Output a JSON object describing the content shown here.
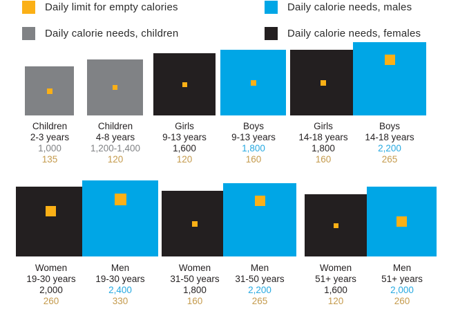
{
  "colors": {
    "empty": "#fbb016",
    "children": "#808285",
    "males": "#00a6e6",
    "females": "#231f20",
    "text_male": "#27a9e1",
    "text_child": "#808285",
    "text_empty": "#c49a4c"
  },
  "legend": [
    {
      "key": "empty",
      "label": "Daily limit for empty calories"
    },
    {
      "key": "males",
      "label": "Daily calorie needs, males"
    },
    {
      "key": "children",
      "label": "Daily calorie needs, children"
    },
    {
      "key": "females",
      "label": "Daily calorie needs, females"
    }
  ],
  "chart_data": {
    "type": "proportional-area",
    "title": "",
    "note": "Each large square's area represents daily calorie needs; inner orange square represents daily limit for empty calories.",
    "rows": [
      [
        {
          "group": "Children",
          "age": "2-3 years",
          "category": "children",
          "calories_label": "1,000",
          "calories": 1000,
          "empty_calories": 135
        },
        {
          "group": "Children",
          "age": "4-8 years",
          "category": "children",
          "calories_label": "1,200-1,400",
          "calories": 1300,
          "empty_calories": 120
        },
        {
          "group": "Girls",
          "age": "9-13 years",
          "category": "females",
          "calories_label": "1,600",
          "calories": 1600,
          "empty_calories": 120
        },
        {
          "group": "Boys",
          "age": "9-13 years",
          "category": "males",
          "calories_label": "1,800",
          "calories": 1800,
          "empty_calories": 160
        },
        {
          "group": "Girls",
          "age": "14-18 years",
          "category": "females",
          "calories_label": "1,800",
          "calories": 1800,
          "empty_calories": 160
        },
        {
          "group": "Boys",
          "age": "14-18 years",
          "category": "males",
          "calories_label": "2,200",
          "calories": 2200,
          "empty_calories": 265
        }
      ],
      [
        {
          "group": "Women",
          "age": "19-30 years",
          "category": "females",
          "calories_label": "2,000",
          "calories": 2000,
          "empty_calories": 260
        },
        {
          "group": "Men",
          "age": "19-30 years",
          "category": "males",
          "calories_label": "2,400",
          "calories": 2400,
          "empty_calories": 330
        },
        {
          "group": "Women",
          "age": "31-50 years",
          "category": "females",
          "calories_label": "1,800",
          "calories": 1800,
          "empty_calories": 160
        },
        {
          "group": "Men",
          "age": "31-50 years",
          "category": "males",
          "calories_label": "2,200",
          "calories": 2200,
          "empty_calories": 265
        },
        {
          "group": "Women",
          "age": "51+ years",
          "category": "females",
          "calories_label": "1,600",
          "calories": 1600,
          "empty_calories": 120
        },
        {
          "group": "Men",
          "age": "51+ years",
          "category": "males",
          "calories_label": "2,000",
          "calories": 2000,
          "empty_calories": 260
        }
      ]
    ]
  }
}
